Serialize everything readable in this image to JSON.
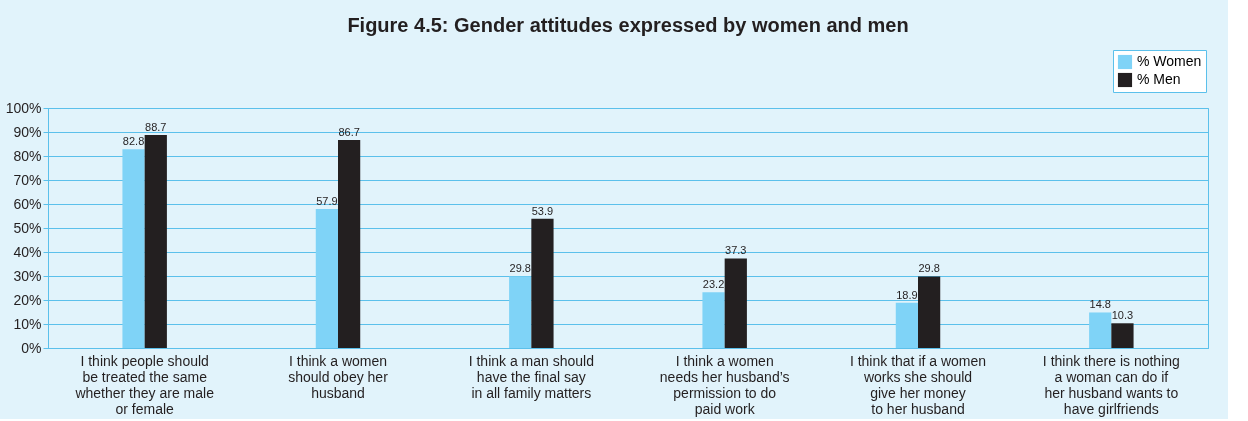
{
  "chart_data": {
    "type": "bar",
    "title": "Figure 4.5: Gender attitudes expressed by women and men",
    "categories": [
      "I think people should\nbe treated the same\nwhether they are male\nor female",
      "I think a women\nshould obey her\nhusband",
      "I think a man should\nhave the final say\nin all family matters",
      "I think a women\nneeds her husband’s\npermission to do\npaid work",
      "I think that if a women\nworks she should\ngive her money\nto her husband",
      "I think there is nothing\na woman can do if\nher husband wants to\nhave girlfriends"
    ],
    "series": [
      {
        "name": "% Women",
        "color": "#7fd3f7",
        "values": [
          82.8,
          57.9,
          29.8,
          23.2,
          18.9,
          14.8
        ]
      },
      {
        "name": "% Men",
        "color": "#231f20",
        "values": [
          88.7,
          86.7,
          53.9,
          37.3,
          29.8,
          10.3
        ]
      }
    ],
    "ylim": [
      0,
      100
    ],
    "yticks": [
      {
        "value": 0,
        "label": "0%"
      },
      {
        "value": 10,
        "label": "10%"
      },
      {
        "value": 20,
        "label": "20%"
      },
      {
        "value": 30,
        "label": "30%"
      },
      {
        "value": 40,
        "label": "40%"
      },
      {
        "value": 50,
        "label": "50%"
      },
      {
        "value": 60,
        "label": "60%"
      },
      {
        "value": 70,
        "label": "70%"
      },
      {
        "value": 80,
        "label": "80%"
      },
      {
        "value": 90,
        "label": "90%"
      },
      {
        "value": 100,
        "label": "100%"
      }
    ],
    "grid": "y",
    "legend": "top right",
    "data_labels": true
  }
}
